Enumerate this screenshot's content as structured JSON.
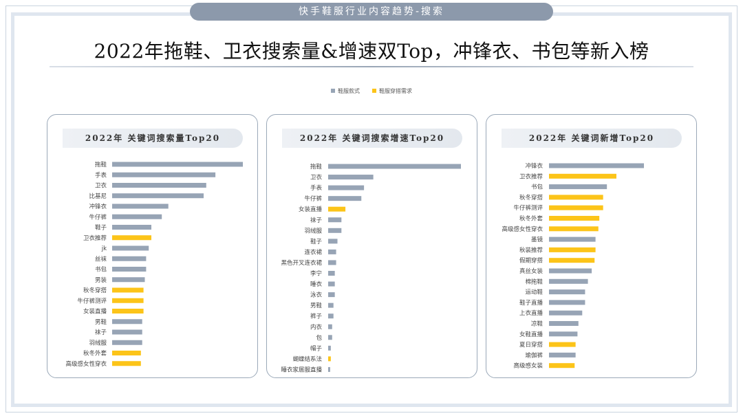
{
  "banner": "快手鞋服行业内容趋势-搜索",
  "headline": "2022年拖鞋、卫衣搜索量&增速双Top，冲锋衣、书包等新入榜",
  "legend": [
    {
      "label": "鞋服款式",
      "color": "#97a4b5"
    },
    {
      "label": "鞋服穿搭需求",
      "color": "#fcc419"
    }
  ],
  "colors": {
    "style": "#97a4b5",
    "demand": "#fcc419"
  },
  "chart_data": [
    {
      "type": "bar",
      "orientation": "horizontal",
      "title": "2022年 关键词搜索量Top20",
      "categories": [
        "拖鞋",
        "手表",
        "卫衣",
        "比基尼",
        "冲锋衣",
        "牛仔裤",
        "鞋子",
        "卫衣推荐",
        "jk",
        "丝袜",
        "书包",
        "男装",
        "秋冬穿搭",
        "牛仔裤测评",
        "女装直播",
        "男鞋",
        "袜子",
        "羽绒服",
        "秋冬外套",
        "高级感女性穿衣"
      ],
      "values": [
        100,
        79,
        72,
        70,
        43,
        38,
        30,
        30,
        28,
        26,
        26,
        25,
        24,
        24,
        24,
        23,
        23,
        23,
        22,
        22
      ],
      "groups": [
        "style",
        "style",
        "style",
        "style",
        "style",
        "style",
        "style",
        "demand",
        "style",
        "style",
        "style",
        "style",
        "demand",
        "demand",
        "demand",
        "style",
        "style",
        "style",
        "demand",
        "demand"
      ]
    },
    {
      "type": "bar",
      "orientation": "horizontal",
      "title": "2022年 关键词搜索增速Top20",
      "categories": [
        "拖鞋",
        "卫衣",
        "手表",
        "牛仔裤",
        "女装直播",
        "袜子",
        "羽绒服",
        "鞋子",
        "连衣裙",
        "黑色开叉连衣裙",
        "李宁",
        "睡衣",
        "泳衣",
        "男鞋",
        "裤子",
        "内衣",
        "包",
        "帽子",
        "蝴蝶结系法",
        "睡衣家居服直播"
      ],
      "values": [
        100,
        34,
        27,
        25,
        13,
        10,
        10,
        7,
        6,
        6,
        5,
        5,
        5,
        4,
        4,
        3,
        3,
        2,
        2,
        1.5
      ],
      "groups": [
        "style",
        "style",
        "style",
        "style",
        "demand",
        "style",
        "style",
        "style",
        "style",
        "style",
        "style",
        "style",
        "style",
        "style",
        "style",
        "style",
        "style",
        "style",
        "demand",
        "style"
      ]
    },
    {
      "type": "bar",
      "orientation": "horizontal",
      "title": "2022年 关键词新增Top20",
      "categories": [
        "冲锋衣",
        "卫衣推荐",
        "书包",
        "秋冬穿搭",
        "牛仔裤测评",
        "秋冬外套",
        "高级感女性穿衣",
        "墨镜",
        "秋装推荐",
        "假期穿搭",
        "真丝女装",
        "棉拖鞋",
        "运动鞋",
        "鞋子直播",
        "上衣直播",
        "凉鞋",
        "女鞋直播",
        "夏日穿搭",
        "瑜伽裤",
        "高级感女装"
      ],
      "values": [
        100,
        71,
        61,
        57,
        57,
        53,
        52,
        49,
        49,
        48,
        45,
        41,
        38,
        38,
        35,
        31,
        30,
        28,
        28,
        27
      ],
      "groups": [
        "style",
        "demand",
        "style",
        "demand",
        "demand",
        "demand",
        "demand",
        "style",
        "demand",
        "demand",
        "style",
        "style",
        "style",
        "style",
        "style",
        "style",
        "style",
        "demand",
        "style",
        "demand"
      ]
    }
  ]
}
